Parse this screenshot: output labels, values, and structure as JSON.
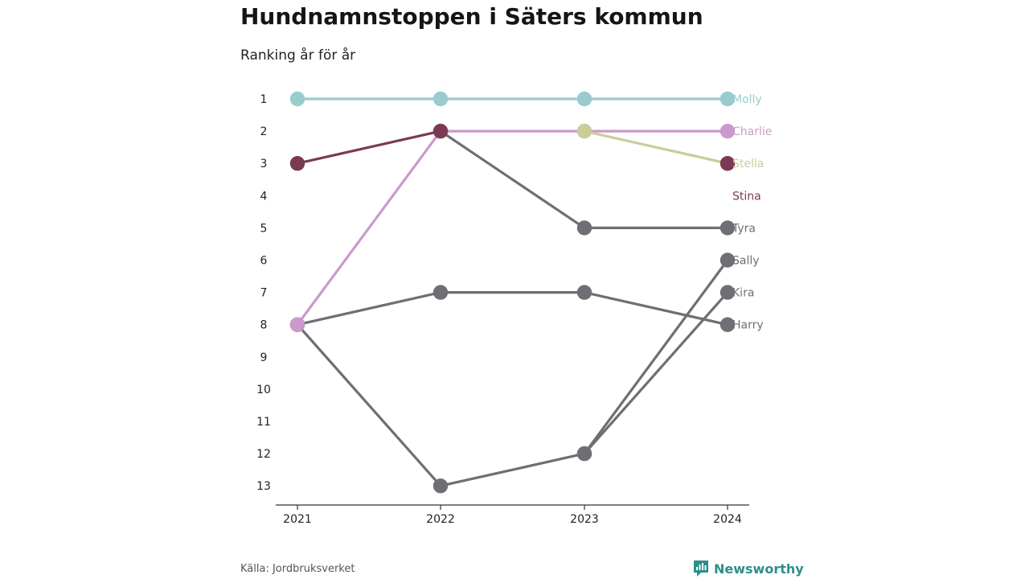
{
  "header": {
    "title": "Hundnamnstoppen i Säters kommun",
    "subtitle": "Ranking år för år"
  },
  "footer": {
    "source": "Källa: Jordbruksverket",
    "brand": "Newsworthy"
  },
  "colors": {
    "Molly": "#99cccc",
    "Charlie": "#cc99cc",
    "Stella": "#cccc99",
    "Stina": "#7a3a52",
    "gray": "#6e6e74",
    "axis": "#333333",
    "brand": "#2d8f8c"
  },
  "chart_data": {
    "type": "line",
    "x": [
      "2021",
      "2022",
      "2023",
      "2024"
    ],
    "y_ticks": [
      1,
      2,
      3,
      4,
      5,
      6,
      7,
      8,
      9,
      10,
      11,
      12,
      13
    ],
    "ylim": [
      1,
      13
    ],
    "y_inverted": true,
    "grid": false,
    "series": [
      {
        "name": "Molly",
        "values": [
          1,
          1,
          1,
          1
        ],
        "highlight": true
      },
      {
        "name": "Charlie",
        "values": [
          8,
          2,
          2,
          2
        ],
        "highlight": true
      },
      {
        "name": "Stella",
        "values": [
          null,
          null,
          2,
          3
        ],
        "highlight": true
      },
      {
        "name": "Stina",
        "values": [
          3,
          2,
          null,
          3
        ],
        "highlight": true
      },
      {
        "name": "Tyra",
        "values": [
          null,
          2,
          5,
          5
        ],
        "highlight": false
      },
      {
        "name": "Sally",
        "values": [
          null,
          null,
          12,
          6
        ],
        "highlight": false
      },
      {
        "name": "Kira",
        "values": [
          8,
          13,
          12,
          7
        ],
        "highlight": false
      },
      {
        "name": "Harry",
        "values": [
          8,
          7,
          7,
          8
        ],
        "highlight": false
      }
    ]
  }
}
